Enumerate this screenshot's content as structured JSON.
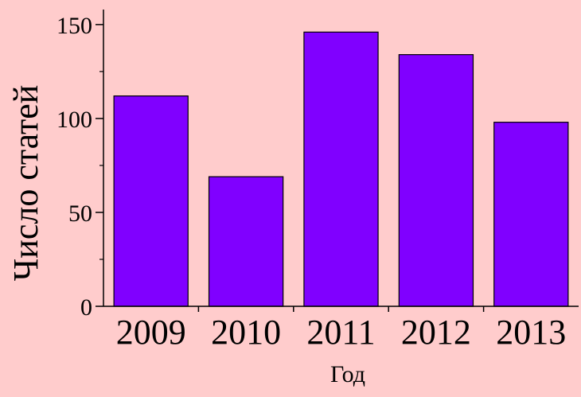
{
  "chart_data": {
    "type": "bar",
    "categories": [
      "2009",
      "2010",
      "2011",
      "2012",
      "2013"
    ],
    "values": [
      112,
      69,
      146,
      134,
      98
    ],
    "title": "",
    "xlabel": "Год",
    "ylabel": "Число статей",
    "ylim": [
      0,
      158
    ],
    "yticks": [
      0,
      50,
      100,
      150
    ],
    "yticks_minor": [
      25,
      75,
      125
    ],
    "grid": false,
    "legend": "none",
    "colors": {
      "background": "#FFCCCC",
      "bar_fill": "#8000FF",
      "bar_stroke": "#000000",
      "axis": "#000000"
    }
  }
}
